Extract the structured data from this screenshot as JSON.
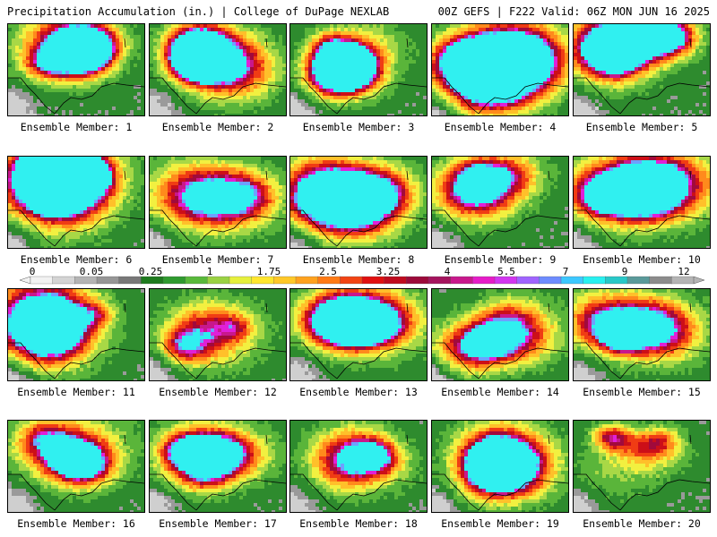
{
  "header": {
    "left_title": "Precipitation Accumulation (in.) | College of DuPage NEXLAB",
    "right_title": "00Z GEFS | F222 Valid: 06Z MON JUN 16 2025"
  },
  "panels": [
    {
      "caption": "Ensemble Member: 1",
      "intensity": 0.75,
      "seed": 11
    },
    {
      "caption": "Ensemble Member: 2",
      "intensity": 0.7,
      "seed": 23
    },
    {
      "caption": "Ensemble Member: 3",
      "intensity": 0.75,
      "seed": 37
    },
    {
      "caption": "Ensemble Member: 4",
      "intensity": 0.65,
      "seed": 41
    },
    {
      "caption": "Ensemble Member: 5",
      "intensity": 0.85,
      "seed": 53
    },
    {
      "caption": "Ensemble Member: 6",
      "intensity": 0.9,
      "seed": 67
    },
    {
      "caption": "Ensemble Member: 7",
      "intensity": 0.4,
      "seed": 71
    },
    {
      "caption": "Ensemble Member: 8",
      "intensity": 0.55,
      "seed": 83
    },
    {
      "caption": "Ensemble Member: 9",
      "intensity": 0.55,
      "seed": 97
    },
    {
      "caption": "Ensemble Member: 10",
      "intensity": 0.8,
      "seed": 101
    },
    {
      "caption": "Ensemble Member: 11",
      "intensity": 0.8,
      "seed": 113
    },
    {
      "caption": "Ensemble Member: 12",
      "intensity": 0.4,
      "seed": 127
    },
    {
      "caption": "Ensemble Member: 13",
      "intensity": 0.8,
      "seed": 131
    },
    {
      "caption": "Ensemble Member: 14",
      "intensity": 0.65,
      "seed": 149
    },
    {
      "caption": "Ensemble Member: 15",
      "intensity": 0.65,
      "seed": 157
    },
    {
      "caption": "Ensemble Member: 16",
      "intensity": 0.6,
      "seed": 163
    },
    {
      "caption": "Ensemble Member: 17",
      "intensity": 0.5,
      "seed": 173
    },
    {
      "caption": "Ensemble Member: 18",
      "intensity": 0.45,
      "seed": 181
    },
    {
      "caption": "Ensemble Member: 19",
      "intensity": 0.6,
      "seed": 191
    },
    {
      "caption": "Ensemble Member: 20",
      "intensity": 0.5,
      "seed": 199
    }
  ],
  "colorbar": {
    "labels": [
      "0",
      "0.05",
      "0.25",
      "1",
      "1.75",
      "2.5",
      "3.25",
      "4",
      "5.5",
      "7",
      "9",
      "12"
    ],
    "colors": [
      "#f2f2f2",
      "#d4d4d4",
      "#b4b4b4",
      "#969696",
      "#787878",
      "#1e7b1e",
      "#2f9a2f",
      "#59b93b",
      "#9ad243",
      "#e6f03c",
      "#ffe62e",
      "#ffc828",
      "#ffa21e",
      "#ff7a14",
      "#f24414",
      "#e01010",
      "#bf0b1e",
      "#9c0a3a",
      "#a4145e",
      "#c8188c",
      "#e61cc8",
      "#d236f0",
      "#a064ff",
      "#6e8cff",
      "#3cc8ff",
      "#28f0f0",
      "#28c8c8",
      "#5a9a9a",
      "#8c8c8c",
      "#b4b4b4"
    ]
  }
}
